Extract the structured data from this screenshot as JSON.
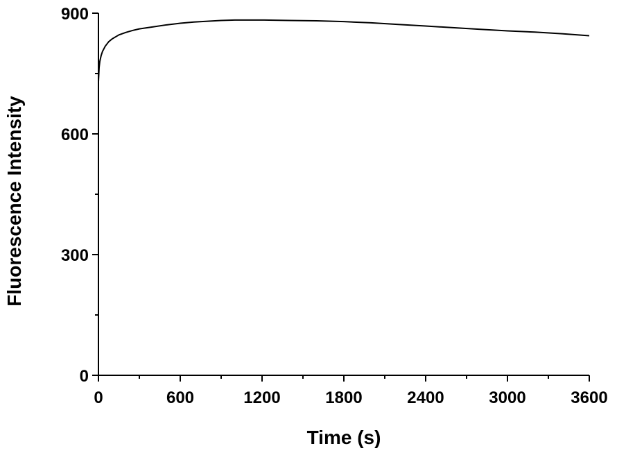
{
  "chart_data": {
    "type": "line",
    "title": "",
    "xlabel": "Time (s)",
    "ylabel": "Fluorescence Intensity",
    "xlim": [
      0,
      3600
    ],
    "ylim": [
      0,
      900
    ],
    "xticks": [
      0,
      600,
      1200,
      1800,
      2400,
      3000,
      3600
    ],
    "yticks": [
      0,
      300,
      600,
      900
    ],
    "xtick_labels": [
      "0",
      "600",
      "1200",
      "1800",
      "2400",
      "3000",
      "3600"
    ],
    "ytick_labels": [
      "0",
      "300",
      "600",
      "900"
    ],
    "x_minor_step": 300,
    "y_minor_step": 150,
    "grid": false,
    "legend": "none",
    "colors": {
      "line": "#000000",
      "axes": "#000000",
      "background": "#ffffff"
    },
    "series": [
      {
        "x": [
          0,
          5,
          10,
          20,
          30,
          50,
          75,
          100,
          150,
          200,
          250,
          300,
          400,
          500,
          600,
          700,
          800,
          900,
          1000,
          1200,
          1400,
          1600,
          1800,
          2000,
          2200,
          2400,
          2600,
          2800,
          3000,
          3200,
          3400,
          3600
        ],
        "y": [
          730,
          765,
          780,
          795,
          805,
          818,
          829,
          836,
          846,
          852,
          857,
          861,
          866,
          871,
          875,
          878,
          880,
          882,
          883,
          883,
          882,
          881,
          879,
          876,
          872,
          868,
          864,
          860,
          856,
          853,
          849,
          844
        ]
      }
    ]
  }
}
